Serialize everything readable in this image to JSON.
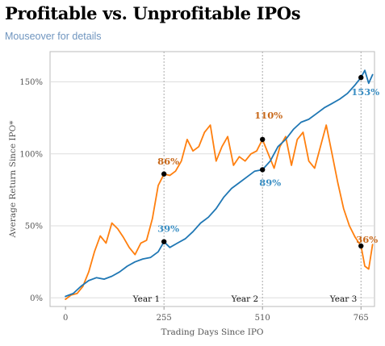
{
  "header": {
    "title": "Profitable vs. Unprofitable IPOs",
    "subtitle": "Mouseover for details"
  },
  "colors": {
    "profitable": "#1f77b4",
    "unprofitable": "#ff7f0e",
    "profitable_label": "#3b8fc4",
    "unprofitable_label": "#c8691b",
    "gridline": "#dddddd",
    "year_line": "#aaaaaa",
    "frame": "#bbbbbb"
  },
  "chart_data": {
    "type": "line",
    "title": "Profitable vs. Unprofitable IPOs",
    "xlabel": "Trading Days Since IPO",
    "ylabel": "Average Return Since IPO*",
    "xlim": [
      -40,
      800
    ],
    "ylim": [
      -0.06,
      1.71
    ],
    "x_ticks": [
      0,
      255,
      510,
      765
    ],
    "x_tick_labels": [
      "0",
      "255",
      "510",
      "765"
    ],
    "y_ticks": [
      0,
      0.5,
      1.0,
      1.5
    ],
    "y_tick_labels": [
      "0%",
      "50%",
      "100%",
      "150%"
    ],
    "grid": "horizontal",
    "year_markers": [
      {
        "x": 255,
        "label": "Year 1"
      },
      {
        "x": 510,
        "label": "Year 2"
      },
      {
        "x": 765,
        "label": "Year 3"
      }
    ],
    "series": [
      {
        "key": "profitable",
        "x": [
          0,
          20,
          40,
          60,
          80,
          100,
          120,
          140,
          160,
          180,
          200,
          220,
          240,
          255,
          270,
          290,
          310,
          330,
          350,
          370,
          390,
          410,
          430,
          450,
          470,
          490,
          510,
          530,
          550,
          570,
          590,
          610,
          630,
          650,
          670,
          690,
          710,
          730,
          750,
          765,
          775,
          785,
          795
        ],
        "y": [
          0.01,
          0.03,
          0.08,
          0.12,
          0.14,
          0.13,
          0.15,
          0.18,
          0.22,
          0.25,
          0.27,
          0.28,
          0.32,
          0.39,
          0.35,
          0.38,
          0.41,
          0.46,
          0.52,
          0.56,
          0.62,
          0.7,
          0.76,
          0.8,
          0.84,
          0.88,
          0.89,
          0.95,
          1.05,
          1.1,
          1.17,
          1.22,
          1.24,
          1.28,
          1.32,
          1.35,
          1.38,
          1.42,
          1.48,
          1.53,
          1.58,
          1.49,
          1.55
        ]
      },
      {
        "key": "unprofitable",
        "x": [
          0,
          15,
          30,
          45,
          60,
          75,
          90,
          105,
          120,
          135,
          150,
          165,
          180,
          195,
          210,
          225,
          240,
          255,
          270,
          285,
          300,
          315,
          330,
          345,
          360,
          375,
          390,
          405,
          420,
          435,
          450,
          465,
          480,
          495,
          510,
          525,
          540,
          555,
          570,
          585,
          600,
          615,
          630,
          645,
          660,
          675,
          690,
          705,
          720,
          735,
          750,
          765,
          775,
          785,
          795
        ],
        "y": [
          -0.01,
          0.02,
          0.03,
          0.08,
          0.18,
          0.32,
          0.43,
          0.38,
          0.52,
          0.48,
          0.42,
          0.35,
          0.3,
          0.38,
          0.4,
          0.55,
          0.78,
          0.86,
          0.85,
          0.88,
          0.95,
          1.1,
          1.02,
          1.05,
          1.15,
          1.2,
          0.95,
          1.05,
          1.12,
          0.92,
          0.98,
          0.95,
          1.0,
          1.02,
          1.1,
          1.0,
          0.9,
          1.05,
          1.12,
          0.92,
          1.1,
          1.15,
          0.95,
          0.9,
          1.05,
          1.2,
          1.0,
          0.8,
          0.62,
          0.5,
          0.42,
          0.36,
          0.22,
          0.2,
          0.37
        ]
      }
    ],
    "data_labels": [
      {
        "series": "profitable",
        "x": 255,
        "y": 0.39,
        "text": "39%"
      },
      {
        "series": "profitable",
        "x": 510,
        "y": 0.89,
        "text": "89%"
      },
      {
        "series": "profitable",
        "x": 765,
        "y": 1.53,
        "text": "153%"
      },
      {
        "series": "unprofitable",
        "x": 255,
        "y": 0.86,
        "text": "86%"
      },
      {
        "series": "unprofitable",
        "x": 510,
        "y": 1.1,
        "text": "110%"
      },
      {
        "series": "unprofitable",
        "x": 765,
        "y": 0.36,
        "text": "36%"
      }
    ]
  }
}
